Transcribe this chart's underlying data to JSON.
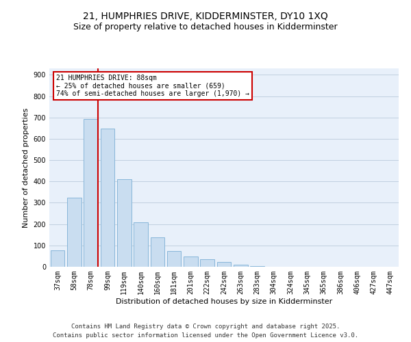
{
  "title": "21, HUMPHRIES DRIVE, KIDDERMINSTER, DY10 1XQ",
  "subtitle": "Size of property relative to detached houses in Kidderminster",
  "xlabel": "Distribution of detached houses by size in Kidderminster",
  "ylabel": "Number of detached properties",
  "categories": [
    "37sqm",
    "58sqm",
    "78sqm",
    "99sqm",
    "119sqm",
    "140sqm",
    "160sqm",
    "181sqm",
    "201sqm",
    "222sqm",
    "242sqm",
    "263sqm",
    "283sqm",
    "304sqm",
    "324sqm",
    "345sqm",
    "365sqm",
    "386sqm",
    "406sqm",
    "427sqm",
    "447sqm"
  ],
  "values": [
    77,
    323,
    693,
    648,
    410,
    207,
    138,
    73,
    47,
    34,
    21,
    9,
    3,
    1,
    0,
    0,
    0,
    0,
    0,
    0,
    1
  ],
  "bar_color": "#c9ddf0",
  "bar_edge_color": "#7aafd4",
  "subject_line_color": "#cc0000",
  "annotation_text": "21 HUMPHRIES DRIVE: 88sqm\n← 25% of detached houses are smaller (659)\n74% of semi-detached houses are larger (1,970) →",
  "annotation_box_color": "#cc0000",
  "ylim": [
    0,
    930
  ],
  "yticks": [
    0,
    100,
    200,
    300,
    400,
    500,
    600,
    700,
    800,
    900
  ],
  "footer_line1": "Contains HM Land Registry data © Crown copyright and database right 2025.",
  "footer_line2": "Contains public sector information licensed under the Open Government Licence v3.0.",
  "bg_color": "#e8f0fa",
  "grid_color": "#c0cfe0",
  "title_fontsize": 10,
  "subtitle_fontsize": 9,
  "axis_label_fontsize": 8,
  "tick_fontsize": 7,
  "footer_fontsize": 6.5
}
